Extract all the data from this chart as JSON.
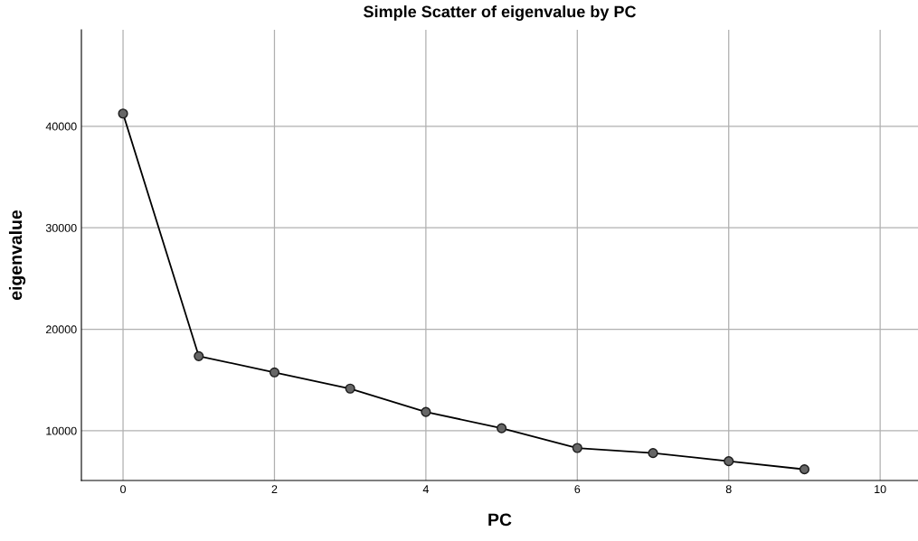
{
  "chart_data": {
    "type": "line",
    "title": "Simple Scatter of eigenvalue by PC",
    "xlabel": "PC",
    "ylabel": "eigenvalue",
    "x": [
      0,
      1,
      2,
      3,
      4,
      5,
      6,
      7,
      8,
      9
    ],
    "series": [
      {
        "color": "#000000",
        "values": [
          41250,
          17350,
          15750,
          14150,
          11850,
          10250,
          8300,
          7800,
          7000,
          6200
        ]
      }
    ],
    "xlim": [
      -0.55,
      10.5
    ],
    "ylim": [
      5100,
      49500
    ],
    "xticks": [
      0,
      2,
      4,
      6,
      8,
      10
    ],
    "yticks": [
      10000,
      20000,
      30000,
      40000
    ],
    "grid": true,
    "marker": "circle",
    "line_style": "solid"
  }
}
